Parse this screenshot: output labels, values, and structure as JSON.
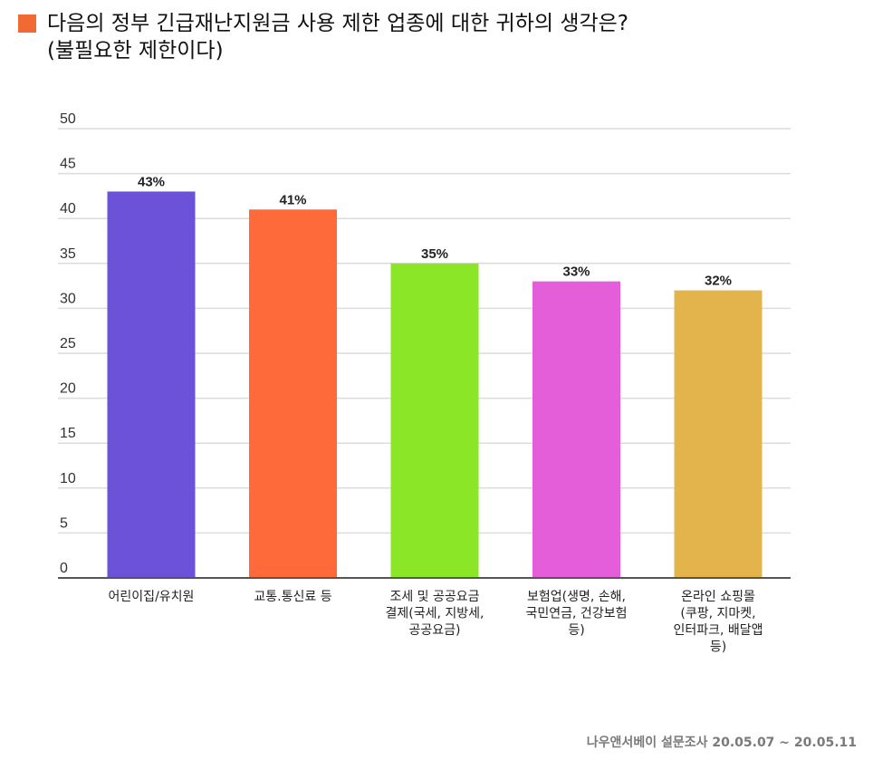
{
  "header": {
    "title_line1": "다음의 정부 긴급재난지원금 사용 제한 업종에 대한 귀하의 생각은?",
    "title_line2": "(불필요한 제한이다)",
    "marker_color": "#f26a33"
  },
  "chart_data": {
    "type": "bar",
    "title": "다음의 정부 긴급재난지원금 사용 제한 업종에 대한 귀하의 생각은? (불필요한 제한이다)",
    "categories": [
      [
        "어린이집/유치원"
      ],
      [
        "교통.통신료 등"
      ],
      [
        "조세 및 공공요금",
        "결제(국세, 지방세,",
        "공공요금)"
      ],
      [
        "보험업(생명, 손해,",
        "국민연금, 건강보험",
        "등)"
      ],
      [
        "온라인 쇼핑몰",
        "(쿠팡, 지마켓,",
        "인터파크, 배달앱",
        "등)"
      ]
    ],
    "values": [
      43,
      41,
      35,
      33,
      32
    ],
    "value_labels": [
      "43%",
      "41%",
      "35%",
      "33%",
      "32%"
    ],
    "colors": [
      "#6c52d9",
      "#ff6a3a",
      "#8ae627",
      "#e35ed8",
      "#e4b44c"
    ],
    "y_ticks": [
      0,
      5,
      10,
      15,
      20,
      25,
      30,
      35,
      40,
      45,
      50
    ],
    "ylim": [
      0,
      50
    ],
    "grid": true,
    "legend": "none"
  },
  "footer": {
    "source": "나우앤서베이 설문조사 20.05.07 ~ 20.05.11"
  }
}
